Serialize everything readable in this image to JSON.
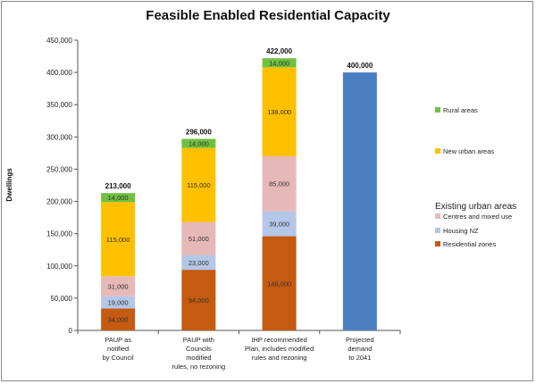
{
  "chart_data": {
    "type": "bar",
    "stacked": true,
    "title": "Feasible Enabled Residential Capacity",
    "ylabel": "Dwellings",
    "ylim": [
      0,
      450000
    ],
    "ytick_step": 50000,
    "ytick_labels": [
      "0",
      "50,000",
      "100,000",
      "150,000",
      "200,000",
      "250,000",
      "300,000",
      "350,000",
      "400,000",
      "450,000"
    ],
    "grid": false,
    "categories": [
      [
        "PAUP as",
        "notified",
        "by Council"
      ],
      [
        "PAUP with",
        "Councils",
        "modified",
        "rules, no rezoning"
      ],
      [
        "IHP recommended",
        "Plan, includes modified",
        "rules and rezoning"
      ],
      [
        "Projected",
        "demand",
        "to 2041"
      ]
    ],
    "totals": [
      "213,000",
      "296,000",
      "422,000",
      "400,000"
    ],
    "series": [
      {
        "key": "residential",
        "name": "Residential zones",
        "color": "#c55a11",
        "values": [
          34000,
          94000,
          146000,
          0
        ],
        "labels": [
          "34,000",
          "94,000",
          "146,000",
          ""
        ]
      },
      {
        "key": "housing",
        "name": "Housing NZ",
        "color": "#b4c7e7",
        "values": [
          19000,
          23000,
          39000,
          0
        ],
        "labels": [
          "19,000",
          "23,000",
          "39,000",
          ""
        ]
      },
      {
        "key": "centres",
        "name": "Centres and mixed use",
        "color": "#e6b9b8",
        "values": [
          31000,
          51000,
          85000,
          0
        ],
        "labels": [
          "31,000",
          "51,000",
          "85,000",
          ""
        ]
      },
      {
        "key": "newurban",
        "name": "New urban areas",
        "color": "#ffc000",
        "values": [
          115000,
          115000,
          138000,
          0
        ],
        "labels": [
          "115,000",
          "115,000",
          "138,000",
          ""
        ]
      },
      {
        "key": "rural",
        "name": "Rural areas",
        "color": "#70c040",
        "values": [
          14000,
          14000,
          14000,
          0
        ],
        "labels": [
          "14,000",
          "14,000",
          "14,000",
          ""
        ]
      },
      {
        "key": "demand",
        "name": "",
        "color": "#4a7fc1",
        "values": [
          0,
          0,
          0,
          400000
        ],
        "labels": [
          "",
          "",
          "",
          ""
        ]
      }
    ],
    "legend": {
      "group_title": "Existing urban areas",
      "entries": [
        {
          "series": "rural",
          "label": "Rural areas"
        },
        {
          "series": "newurban",
          "label": "New urban areas"
        },
        {
          "series": "centres",
          "label": "Centres and mixed use"
        },
        {
          "series": "housing",
          "label": "Housing NZ"
        },
        {
          "series": "residential",
          "label": "Residential zones"
        }
      ]
    }
  }
}
